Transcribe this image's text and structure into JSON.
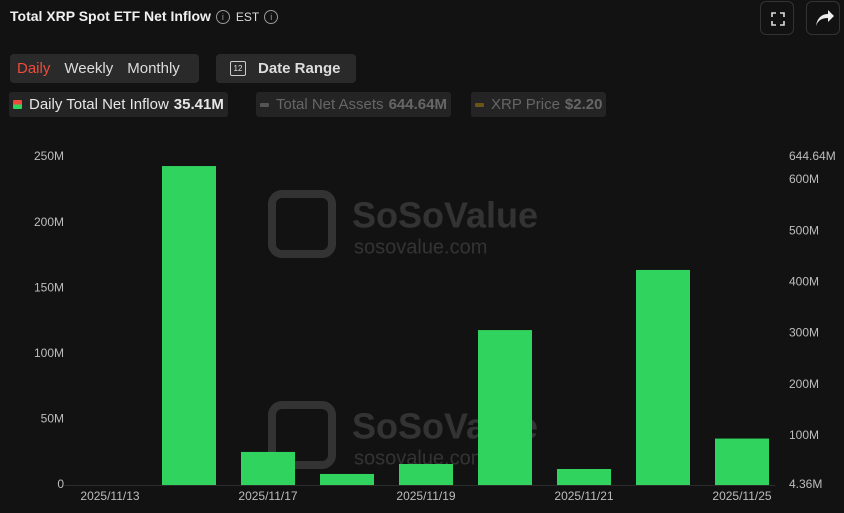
{
  "header": {
    "title": "Total XRP Spot ETF Net Inflow",
    "timezone": "EST"
  },
  "tabs": [
    "Daily",
    "Weekly",
    "Monthly"
  ],
  "date_range": {
    "icon": "12",
    "label": "Date Range"
  },
  "legend": [
    {
      "name": "Daily Total Net Inflow",
      "value": "35.41M"
    },
    {
      "name": "Total Net Assets",
      "value": "644.64M"
    },
    {
      "name": "XRP Price",
      "value": "$2.20"
    }
  ],
  "watermark": {
    "brand": "SoSoValue",
    "url": "sosovalue.com"
  },
  "chart_data": {
    "type": "bar",
    "categories": [
      "2025/11/13",
      null,
      "2025/11/17",
      null,
      "2025/11/19",
      null,
      "2025/11/21",
      null,
      "2025/11/25"
    ],
    "series": [
      {
        "name": "Daily Total Net Inflow",
        "color": "#2fd35d",
        "values": [
          null,
          243.1,
          25.2,
          8.4,
          16.0,
          118.1,
          12.2,
          163.9,
          35.41
        ]
      }
    ],
    "ylim": [
      0,
      250
    ],
    "yticks": [
      0,
      {
        "value": 50,
        "label": "50M"
      },
      {
        "value": 100,
        "label": "100M"
      },
      {
        "value": 150,
        "label": "150M"
      },
      {
        "value": 200,
        "label": "200M"
      },
      {
        "value": 250,
        "label": "250M"
      }
    ],
    "y2lim": [
      4.36,
      644.64
    ],
    "y2ticks": [
      {
        "value": 4.36,
        "label": "4.36M"
      },
      {
        "value": 100,
        "label": "100M"
      },
      {
        "value": 200,
        "label": "200M"
      },
      {
        "value": 300,
        "label": "300M"
      },
      {
        "value": 400,
        "label": "400M"
      },
      {
        "value": 500,
        "label": "500M"
      },
      {
        "value": 600,
        "label": "600M"
      },
      {
        "value": 644.64,
        "label": "644.64M"
      }
    ],
    "grid": false
  }
}
